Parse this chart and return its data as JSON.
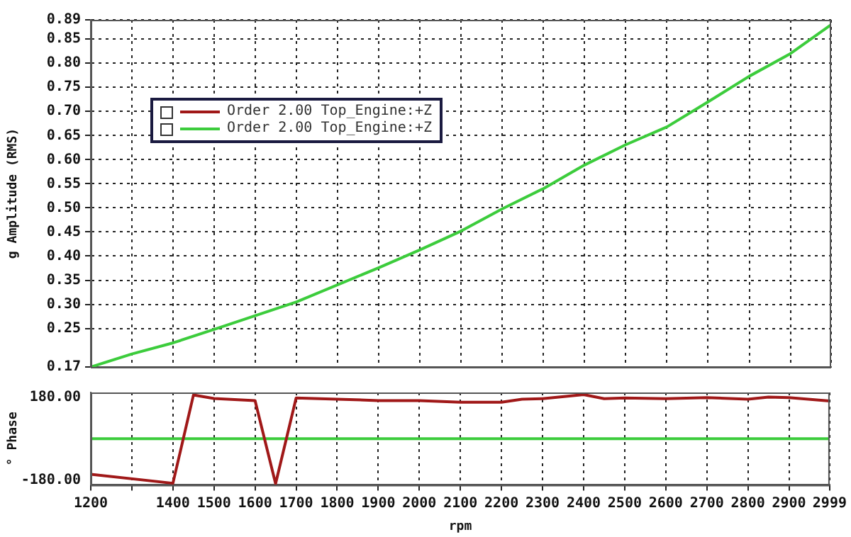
{
  "chart_data": [
    {
      "type": "line",
      "ylabel": "g Amplitude (RMS)",
      "xlim": [
        1200,
        2999
      ],
      "xticks": [
        1200,
        {
          "value": 1300,
          "label": null
        },
        1400,
        1500,
        1600,
        1700,
        1800,
        1900,
        2000,
        2100,
        2200,
        2300,
        2400,
        2500,
        2600,
        2700,
        2800,
        2900,
        2999
      ],
      "ylim": [
        0.17,
        0.89
      ],
      "yticks": [
        {
          "value": 0.17,
          "label": "0.17"
        },
        {
          "value": 0.25,
          "label": "0.25"
        },
        {
          "value": 0.3,
          "label": "0.30"
        },
        {
          "value": 0.35,
          "label": "0.35"
        },
        {
          "value": 0.4,
          "label": "0.40"
        },
        {
          "value": 0.45,
          "label": "0.45"
        },
        {
          "value": 0.5,
          "label": "0.50"
        },
        {
          "value": 0.55,
          "label": "0.55"
        },
        {
          "value": 0.6,
          "label": "0.60"
        },
        {
          "value": 0.65,
          "label": "0.65"
        },
        {
          "value": 0.7,
          "label": "0.70"
        },
        {
          "value": 0.75,
          "label": "0.75"
        },
        {
          "value": 0.8,
          "label": "0.80"
        },
        {
          "value": 0.85,
          "label": "0.85"
        },
        {
          "value": 0.89,
          "label": "0.89"
        }
      ],
      "grid": true,
      "legend": "top left",
      "tick_labels": "y",
      "marker": "none",
      "line_style": "solid",
      "series": [
        {
          "name": "Order 2.00 Top_Engine:+Z",
          "color": "#a01818"
        },
        {
          "name": "Order 2.00 Top_Engine:+Z",
          "color": "#3ccc3c",
          "x": [
            1200,
            1300,
            1400,
            1500,
            1700,
            1900,
            2000,
            2100,
            2200,
            2300,
            2400,
            2500,
            2600,
            2700,
            2800,
            2900,
            2999
          ],
          "values": [
            0.17,
            0.197,
            0.22,
            0.248,
            0.305,
            0.376,
            0.413,
            0.452,
            0.498,
            0.54,
            0.589,
            0.631,
            0.668,
            0.72,
            0.773,
            0.82,
            0.88
          ]
        }
      ]
    },
    {
      "type": "line",
      "xlabel": "rpm",
      "ylabel": "° Phase",
      "xlim": [
        1200,
        2999
      ],
      "xticks": [
        1200,
        {
          "value": 1300,
          "label": null
        },
        1400,
        1500,
        1600,
        1700,
        1800,
        1900,
        2000,
        2100,
        2200,
        2300,
        2400,
        2500,
        2600,
        2700,
        2800,
        2900,
        2999
      ],
      "ylim": [
        -200,
        200
      ],
      "yticks": [
        {
          "value": -180,
          "label": "-180.00"
        },
        {
          "value": 180,
          "label": "180.00"
        }
      ],
      "grid": "x",
      "marker": "none",
      "line_style": "solid",
      "series": [
        {
          "color": "#a01818",
          "x": [
            1200,
            1400,
            1450,
            1500,
            1600,
            1650,
            1700,
            1800,
            1900,
            2000,
            2100,
            2200,
            2250,
            2300,
            2400,
            2450,
            2500,
            2600,
            2700,
            2800,
            2850,
            2900,
            2999
          ],
          "values": [
            -154,
            -193,
            189,
            174,
            165,
            -195,
            176,
            171,
            165,
            165,
            158,
            158,
            171,
            173,
            191,
            173,
            176,
            173,
            178,
            171,
            180,
            178,
            163
          ]
        },
        {
          "color": "#3ccc3c",
          "x": [
            1200,
            2999
          ],
          "values": [
            0,
            0
          ]
        }
      ]
    }
  ]
}
